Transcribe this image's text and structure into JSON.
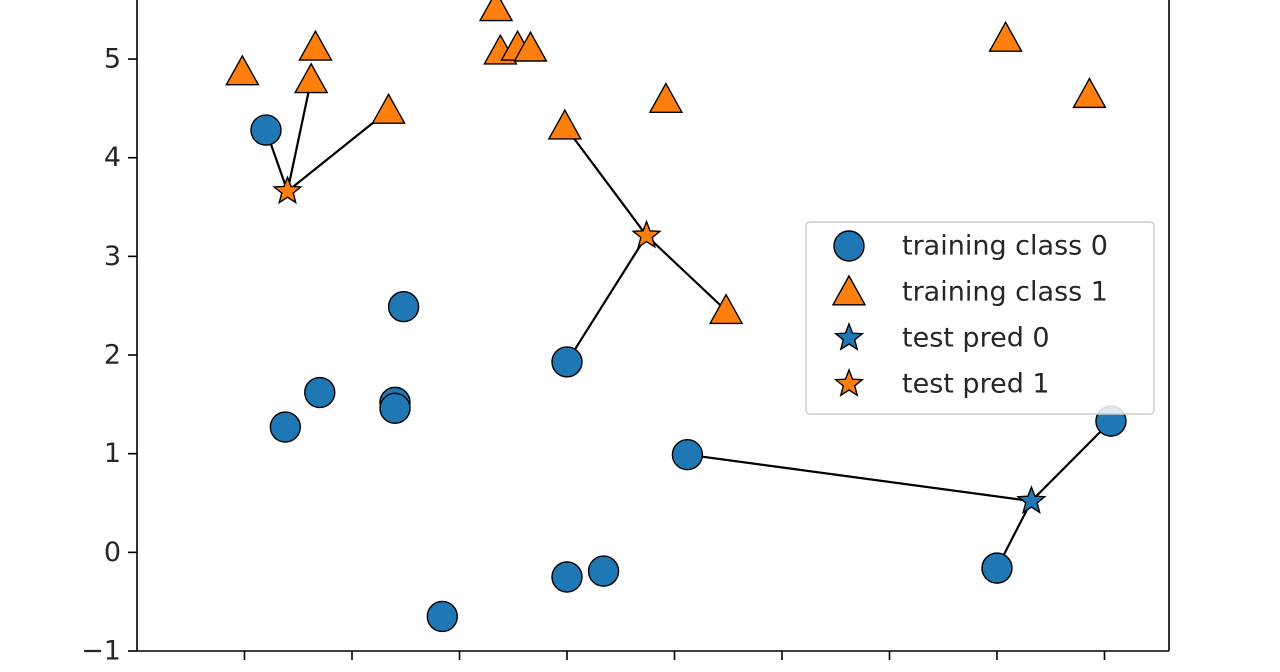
{
  "chart_data": {
    "type": "scatter",
    "title": "",
    "xlabel": "",
    "ylabel": "",
    "xlim": [
      7.5,
      12.3
    ],
    "ylim": [
      -1.0,
      5.7
    ],
    "grid": false,
    "legend_placement": "center-right",
    "y_ticks": [
      -1,
      0,
      1,
      2,
      3,
      4,
      5
    ],
    "y_tick_labels": [
      "−1",
      "0",
      "1",
      "2",
      "3",
      "4",
      "5"
    ],
    "x_ticks": [
      8,
      8.5,
      9,
      9.5,
      10,
      10.5,
      11,
      11.5,
      12
    ],
    "x_tick_labels": [
      "",
      "",
      "",
      "",
      "",
      "",
      "",
      "",
      ""
    ],
    "colors": {
      "class0": "#1f77b4",
      "class1": "#ff7f0e",
      "edge": "#000000"
    },
    "series": [
      {
        "name": "training class 0",
        "marker": "circle",
        "color": "#1f77b4",
        "points": [
          [
            8.1,
            4.28
          ],
          [
            8.19,
            1.27
          ],
          [
            8.35,
            1.62
          ],
          [
            8.7,
            1.52
          ],
          [
            8.7,
            1.46
          ],
          [
            8.74,
            2.49
          ],
          [
            8.92,
            -0.65
          ],
          [
            9.5,
            1.93
          ],
          [
            9.5,
            -0.25
          ],
          [
            9.67,
            -0.19
          ],
          [
            10.06,
            0.99
          ],
          [
            11.5,
            -0.16
          ],
          [
            12.03,
            1.33
          ]
        ]
      },
      {
        "name": "training class 1",
        "marker": "triangle",
        "color": "#ff7f0e",
        "points": [
          [
            7.99,
            4.87
          ],
          [
            8.33,
            5.12
          ],
          [
            8.31,
            4.79
          ],
          [
            8.67,
            4.48
          ],
          [
            9.17,
            5.52
          ],
          [
            9.19,
            5.08
          ],
          [
            9.27,
            5.12
          ],
          [
            9.33,
            5.11
          ],
          [
            9.49,
            4.32
          ],
          [
            9.96,
            4.59
          ],
          [
            10.24,
            2.45
          ],
          [
            11.54,
            5.21
          ],
          [
            11.93,
            4.64
          ]
        ]
      },
      {
        "name": "test pred 0",
        "marker": "star",
        "color": "#1f77b4",
        "points": [
          [
            11.66,
            0.52
          ]
        ]
      },
      {
        "name": "test pred 1",
        "marker": "star",
        "color": "#ff7f0e",
        "points": [
          [
            8.2,
            3.66
          ],
          [
            9.87,
            3.21
          ]
        ]
      }
    ],
    "neighbor_lines": [
      {
        "from": [
          8.2,
          3.66
        ],
        "to": [
          8.1,
          4.28
        ]
      },
      {
        "from": [
          8.2,
          3.66
        ],
        "to": [
          8.31,
          4.79
        ]
      },
      {
        "from": [
          8.2,
          3.66
        ],
        "to": [
          8.67,
          4.48
        ]
      },
      {
        "from": [
          9.87,
          3.21
        ],
        "to": [
          9.49,
          4.32
        ]
      },
      {
        "from": [
          9.87,
          3.21
        ],
        "to": [
          10.24,
          2.45
        ]
      },
      {
        "from": [
          9.87,
          3.21
        ],
        "to": [
          9.5,
          1.93
        ]
      },
      {
        "from": [
          11.66,
          0.52
        ],
        "to": [
          10.06,
          0.99
        ]
      },
      {
        "from": [
          11.66,
          0.52
        ],
        "to": [
          12.03,
          1.33
        ]
      },
      {
        "from": [
          11.66,
          0.52
        ],
        "to": [
          11.5,
          -0.16
        ]
      }
    ]
  }
}
